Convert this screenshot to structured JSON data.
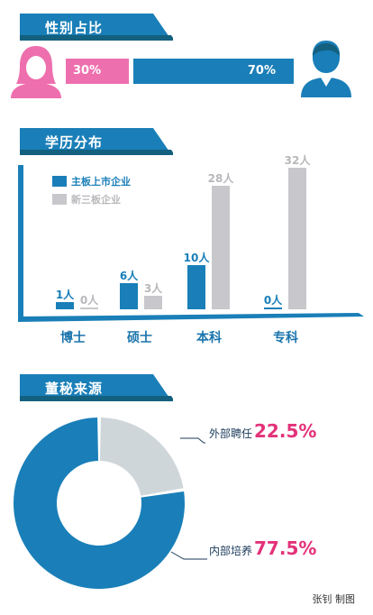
{
  "colors": {
    "blue": "#1a7fb8",
    "pink": "#ee6fae",
    "gray": "#c8c7cb",
    "light_gray": "#cfd6da",
    "dark_blue": "#1a3a5a"
  },
  "section1": {
    "title": "性别占比",
    "female": {
      "label": "30%",
      "value": 30
    },
    "male": {
      "label": "70%",
      "value": 70
    }
  },
  "section2": {
    "title": "学历分布",
    "legend": [
      "主板上市企业",
      "新三板企业"
    ],
    "chart_data": {
      "type": "bar",
      "categories": [
        "博士",
        "硕士",
        "本科",
        "专科"
      ],
      "series": [
        {
          "name": "主板上市企业",
          "values": [
            1,
            6,
            10,
            0
          ],
          "labels": [
            "1人",
            "6人",
            "10人",
            "0人"
          ]
        },
        {
          "name": "新三板企业",
          "values": [
            0,
            3,
            28,
            32
          ],
          "labels": [
            "0人",
            "3人",
            "28人",
            "32人"
          ]
        }
      ]
    }
  },
  "section3": {
    "title": "董秘来源",
    "chart_data": {
      "type": "pie",
      "slices": [
        {
          "label": "外部聘任",
          "value": 22.5,
          "pct_text": "22.5%"
        },
        {
          "label": "内部培养",
          "value": 77.5,
          "pct_text": "77.5%"
        }
      ]
    }
  },
  "credit": "张钊 制图"
}
